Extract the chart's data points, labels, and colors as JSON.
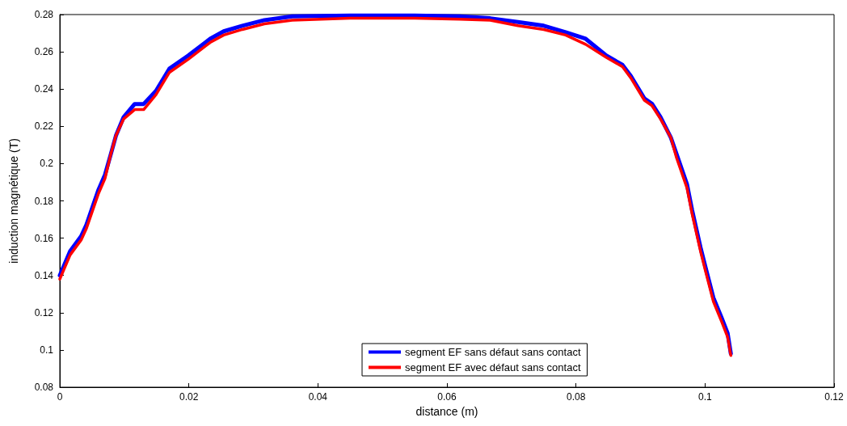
{
  "chart_data": {
    "type": "line",
    "xlabel": "distance (m)",
    "ylabel": "induction magnétique (T)",
    "x": [
      0,
      0.0016,
      0.0033,
      0.0041,
      0.0049,
      0.006,
      0.007,
      0.0079,
      0.0087,
      0.0099,
      0.0116,
      0.013,
      0.0149,
      0.017,
      0.0199,
      0.0233,
      0.0254,
      0.0283,
      0.0317,
      0.036,
      0.045,
      0.055,
      0.062,
      0.0667,
      0.071,
      0.075,
      0.0784,
      0.0815,
      0.0847,
      0.0872,
      0.0885,
      0.0906,
      0.0918,
      0.0931,
      0.0947,
      0.0956,
      0.0972,
      0.098,
      0.0993,
      0.1001,
      0.1013,
      0.1026,
      0.1035,
      0.104
    ],
    "series": [
      {
        "name": "segment EF sans défaut sans contact",
        "color": "#0000ff",
        "values": [
          0.14,
          0.153,
          0.161,
          0.167,
          0.175,
          0.186,
          0.194,
          0.205,
          0.215,
          0.225,
          0.232,
          0.232,
          0.239,
          0.251,
          0.258,
          0.267,
          0.271,
          0.274,
          0.277,
          0.279,
          0.2795,
          0.2795,
          0.279,
          0.278,
          0.276,
          0.274,
          0.2705,
          0.267,
          0.258,
          0.253,
          0.247,
          0.235,
          0.232,
          0.225,
          0.214,
          0.205,
          0.189,
          0.175,
          0.155,
          0.144,
          0.128,
          0.117,
          0.109,
          0.098
        ]
      },
      {
        "name": "segment EF avec défaut sans contact",
        "color": "#ff0000",
        "values": [
          0.138,
          0.151,
          0.159,
          0.165,
          0.173,
          0.184,
          0.192,
          0.205,
          0.215,
          0.224,
          0.229,
          0.229,
          0.237,
          0.249,
          0.256,
          0.265,
          0.269,
          0.272,
          0.275,
          0.277,
          0.278,
          0.278,
          0.2775,
          0.277,
          0.274,
          0.272,
          0.269,
          0.264,
          0.257,
          0.252,
          0.246,
          0.234,
          0.231,
          0.224,
          0.214,
          0.203,
          0.187,
          0.173,
          0.153,
          0.142,
          0.126,
          0.115,
          0.107,
          0.097
        ]
      }
    ],
    "xlim": [
      0,
      0.12
    ],
    "xticks": [
      0,
      0.02,
      0.04,
      0.06,
      0.08,
      0.1,
      0.12
    ],
    "ylim": [
      0.08,
      0.28
    ],
    "yticks": [
      0.08,
      0.1,
      0.12,
      0.14,
      0.16,
      0.18,
      0.2,
      0.22,
      0.24,
      0.26,
      0.28
    ],
    "grid": false,
    "legend": "bottom",
    "marker": "none",
    "line_style": "solid"
  }
}
